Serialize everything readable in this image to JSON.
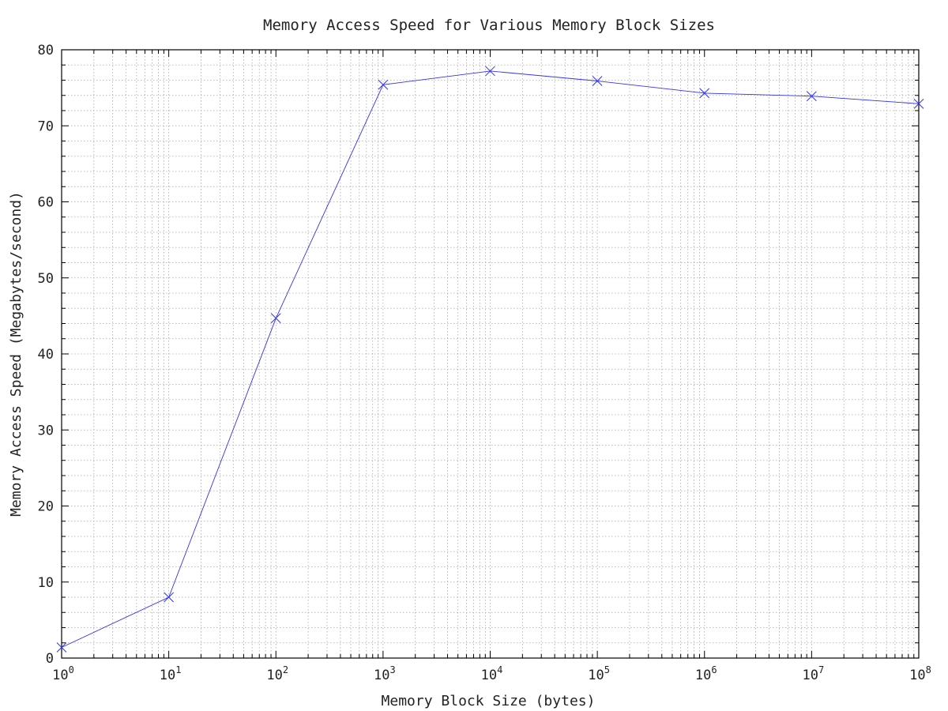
{
  "chart_data": {
    "type": "line",
    "title": "Memory Access Speed for Various Memory Block Sizes",
    "xlabel": "Memory Block Size (bytes)",
    "ylabel": "Memory Access Speed (Megabytes/second)",
    "x_scale": "log10",
    "xlim": [
      1,
      100000000
    ],
    "ylim": [
      0,
      80
    ],
    "x_ticks": [
      {
        "base": "10",
        "exp": "0",
        "value": 1
      },
      {
        "base": "10",
        "exp": "1",
        "value": 10
      },
      {
        "base": "10",
        "exp": "2",
        "value": 100
      },
      {
        "base": "10",
        "exp": "3",
        "value": 1000
      },
      {
        "base": "10",
        "exp": "4",
        "value": 10000
      },
      {
        "base": "10",
        "exp": "5",
        "value": 100000
      },
      {
        "base": "10",
        "exp": "6",
        "value": 1000000
      },
      {
        "base": "10",
        "exp": "7",
        "value": 10000000
      },
      {
        "base": "10",
        "exp": "8",
        "value": 100000000
      }
    ],
    "y_ticks": [
      "0",
      "10",
      "20",
      "30",
      "40",
      "50",
      "60",
      "70",
      "80"
    ],
    "grid": true,
    "legend": "none",
    "series": [
      {
        "color": "#3333ee",
        "marker": "x",
        "x": [
          1,
          10,
          100,
          1000,
          10000,
          100000,
          1000000,
          10000000,
          100000000
        ],
        "y": [
          1.4,
          8.0,
          44.7,
          75.4,
          77.2,
          75.9,
          74.3,
          73.9,
          72.9
        ]
      }
    ]
  }
}
